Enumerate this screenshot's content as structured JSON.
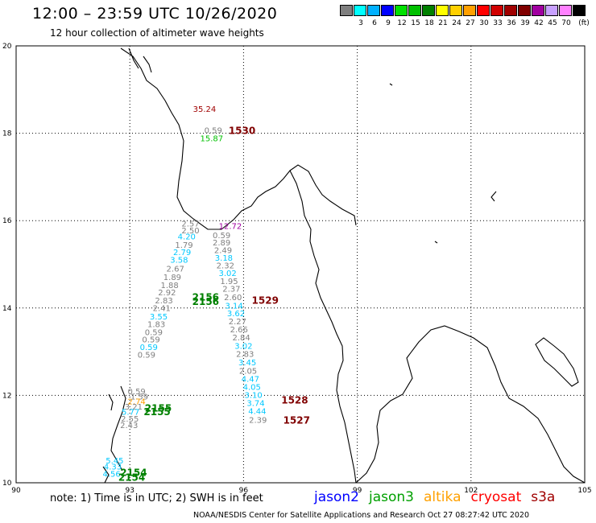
{
  "header": {
    "title": "12:00 – 23:59 UTC 10/26/2020",
    "subtitle": "12 hour collection of altimeter wave heights"
  },
  "scale": {
    "colors": [
      "#7f7f7f",
      "#00ffff",
      "#00b0ff",
      "#0000ff",
      "#00e000",
      "#00c000",
      "#008000",
      "#ffff00",
      "#ffd000",
      "#ffa000",
      "#ff0000",
      "#d00000",
      "#a00000",
      "#800000",
      "#a000a0",
      "#c8a0ff",
      "#ff80ff",
      "#000000"
    ],
    "labels": [
      "3",
      "6",
      "9",
      "12",
      "15",
      "18",
      "21",
      "24",
      "27",
      "30",
      "33",
      "36",
      "39",
      "42",
      "45",
      "70"
    ],
    "unit": "(ft)"
  },
  "axes": {
    "y": {
      "ticks": [
        "20",
        "18",
        "16",
        "14",
        "12",
        "10"
      ],
      "values": [
        20,
        18,
        16,
        14,
        12,
        10
      ],
      "range": [
        10,
        20
      ]
    },
    "x": {
      "ticks": [
        "90",
        "93",
        "96",
        "99",
        "102",
        "105"
      ],
      "values": [
        90,
        93,
        96,
        99,
        102,
        105
      ],
      "range": [
        90,
        105
      ]
    }
  },
  "wave_labels": [
    {
      "text": "35.24",
      "lon": 94.97,
      "lat": 18.49,
      "color": "#a00000"
    },
    {
      "text": "0.59",
      "lon": 95.2,
      "lat": 18.0,
      "color": "#7f7f7f"
    },
    {
      "text": "1530",
      "lon": 95.96,
      "lat": 17.98,
      "color": "#800000",
      "bold": true
    },
    {
      "text": "15.87",
      "lon": 95.16,
      "lat": 17.82,
      "color": "#00c000"
    },
    {
      "text": "12.72",
      "lon": 95.65,
      "lat": 15.81,
      "color": "#a000a0"
    },
    {
      "text": "2.57",
      "lon": 94.6,
      "lat": 15.87,
      "color": "#7f7f7f"
    },
    {
      "text": "2.50",
      "lon": 94.6,
      "lat": 15.71,
      "color": "#7f7f7f"
    },
    {
      "text": "4.20",
      "lon": 94.5,
      "lat": 15.57,
      "color": "#00c8ff"
    },
    {
      "text": "1.79",
      "lon": 94.43,
      "lat": 15.38,
      "color": "#7f7f7f"
    },
    {
      "text": "2.79",
      "lon": 94.38,
      "lat": 15.21,
      "color": "#00c8ff"
    },
    {
      "text": "3.58",
      "lon": 94.3,
      "lat": 15.04,
      "color": "#00c8ff"
    },
    {
      "text": "2.67",
      "lon": 94.2,
      "lat": 14.83,
      "color": "#7f7f7f"
    },
    {
      "text": "1.89",
      "lon": 94.12,
      "lat": 14.64,
      "color": "#7f7f7f"
    },
    {
      "text": "1.88",
      "lon": 94.05,
      "lat": 14.46,
      "color": "#7f7f7f"
    },
    {
      "text": "2.92",
      "lon": 93.98,
      "lat": 14.29,
      "color": "#7f7f7f"
    },
    {
      "text": "2.83",
      "lon": 93.9,
      "lat": 14.11,
      "color": "#7f7f7f"
    },
    {
      "text": "2.41",
      "lon": 93.84,
      "lat": 13.93,
      "color": "#7f7f7f"
    },
    {
      "text": "3.55",
      "lon": 93.76,
      "lat": 13.74,
      "color": "#00c8ff"
    },
    {
      "text": "1.83",
      "lon": 93.7,
      "lat": 13.56,
      "color": "#7f7f7f"
    },
    {
      "text": "0.59",
      "lon": 93.63,
      "lat": 13.38,
      "color": "#7f7f7f"
    },
    {
      "text": "0.59",
      "lon": 93.56,
      "lat": 13.21,
      "color": "#7f7f7f"
    },
    {
      "text": "0.59",
      "lon": 93.5,
      "lat": 13.04,
      "color": "#00c8ff"
    },
    {
      "text": "0.59",
      "lon": 93.44,
      "lat": 12.86,
      "color": "#7f7f7f"
    },
    {
      "text": "2156",
      "lon": 95.0,
      "lat": 14.17,
      "color": "#008000",
      "bold": true
    },
    {
      "text": "2156",
      "lon": 95.0,
      "lat": 14.07,
      "color": "#008000",
      "bold": true
    },
    {
      "text": "0.59",
      "lon": 95.42,
      "lat": 15.6,
      "color": "#7f7f7f"
    },
    {
      "text": "2.89",
      "lon": 95.42,
      "lat": 15.43,
      "color": "#7f7f7f"
    },
    {
      "text": "2.49",
      "lon": 95.46,
      "lat": 15.26,
      "color": "#7f7f7f"
    },
    {
      "text": "3.18",
      "lon": 95.48,
      "lat": 15.08,
      "color": "#00c8ff"
    },
    {
      "text": "2.32",
      "lon": 95.52,
      "lat": 14.91,
      "color": "#7f7f7f"
    },
    {
      "text": "3.02",
      "lon": 95.58,
      "lat": 14.73,
      "color": "#00c8ff"
    },
    {
      "text": "1529",
      "lon": 96.57,
      "lat": 14.1,
      "color": "#800000",
      "bold": true
    },
    {
      "text": "1.95",
      "lon": 95.62,
      "lat": 14.55,
      "color": "#7f7f7f"
    },
    {
      "text": "2.37",
      "lon": 95.68,
      "lat": 14.37,
      "color": "#7f7f7f"
    },
    {
      "text": "2.60",
      "lon": 95.72,
      "lat": 14.18,
      "color": "#7f7f7f"
    },
    {
      "text": "3.14",
      "lon": 95.75,
      "lat": 13.99,
      "color": "#00c8ff"
    },
    {
      "text": "3.62",
      "lon": 95.8,
      "lat": 13.81,
      "color": "#00c8ff"
    },
    {
      "text": "2.27",
      "lon": 95.84,
      "lat": 13.63,
      "color": "#7f7f7f"
    },
    {
      "text": "2.66",
      "lon": 95.88,
      "lat": 13.44,
      "color": "#7f7f7f"
    },
    {
      "text": "2.84",
      "lon": 95.94,
      "lat": 13.26,
      "color": "#7f7f7f"
    },
    {
      "text": "3.02",
      "lon": 96.0,
      "lat": 13.07,
      "color": "#00c8ff"
    },
    {
      "text": "2.83",
      "lon": 96.04,
      "lat": 12.88,
      "color": "#7f7f7f"
    },
    {
      "text": "3.45",
      "lon": 96.1,
      "lat": 12.69,
      "color": "#00c8ff"
    },
    {
      "text": "2.05",
      "lon": 96.12,
      "lat": 12.5,
      "color": "#7f7f7f"
    },
    {
      "text": "4.47",
      "lon": 96.18,
      "lat": 12.31,
      "color": "#00c8ff"
    },
    {
      "text": "4.05",
      "lon": 96.22,
      "lat": 12.13,
      "color": "#00c8ff"
    },
    {
      "text": "3.10",
      "lon": 96.26,
      "lat": 11.94,
      "color": "#00c8ff"
    },
    {
      "text": "1528",
      "lon": 97.35,
      "lat": 11.81,
      "color": "#800000",
      "bold": true
    },
    {
      "text": "3.74",
      "lon": 96.32,
      "lat": 11.76,
      "color": "#00c8ff"
    },
    {
      "text": "4.44",
      "lon": 96.36,
      "lat": 11.57,
      "color": "#00c8ff"
    },
    {
      "text": "2.39",
      "lon": 96.38,
      "lat": 11.37,
      "color": "#7f7f7f"
    },
    {
      "text": "1527",
      "lon": 97.4,
      "lat": 11.35,
      "color": "#800000",
      "bold": true
    },
    {
      "text": "0.59",
      "lon": 93.18,
      "lat": 12.03,
      "color": "#7f7f7f"
    },
    {
      "text": "1.59",
      "lon": 93.25,
      "lat": 11.91,
      "color": "#7f7f7f"
    },
    {
      "text": "2.74",
      "lon": 93.18,
      "lat": 11.8,
      "color": "#ffa000"
    },
    {
      "text": "3.21",
      "lon": 93.1,
      "lat": 11.68,
      "color": "#7f7f7f"
    },
    {
      "text": "5.77",
      "lon": 93.02,
      "lat": 11.56,
      "color": "#00c8ff"
    },
    {
      "text": "2155",
      "lon": 93.75,
      "lat": 11.63,
      "color": "#008000",
      "bold": true
    },
    {
      "text": "2155",
      "lon": 93.72,
      "lat": 11.55,
      "color": "#008000",
      "bold": true
    },
    {
      "text": "2.55",
      "lon": 93.0,
      "lat": 11.4,
      "color": "#7f7f7f"
    },
    {
      "text": "2.43",
      "lon": 92.98,
      "lat": 11.25,
      "color": "#7f7f7f"
    },
    {
      "text": "5.45",
      "lon": 92.6,
      "lat": 10.44,
      "color": "#00c8ff"
    },
    {
      "text": "4.33",
      "lon": 92.55,
      "lat": 10.3,
      "color": "#00c8ff"
    },
    {
      "text": "4.56",
      "lon": 92.52,
      "lat": 10.14,
      "color": "#00c8ff"
    },
    {
      "text": "2154",
      "lon": 93.1,
      "lat": 10.16,
      "color": "#008000",
      "bold": true
    },
    {
      "text": "2154",
      "lon": 93.05,
      "lat": 10.05,
      "color": "#008000",
      "bold": true
    }
  ],
  "note": "note:  1) Time is in UTC;  2) SWH is in feet",
  "legend": [
    {
      "label": "jason2",
      "color": "#0000ff"
    },
    {
      "label": "jason3",
      "color": "#00a000"
    },
    {
      "label": "altika",
      "color": "#ffa000"
    },
    {
      "label": "cryosat",
      "color": "#ff0000"
    },
    {
      "label": "s3a",
      "color": "#a00000"
    }
  ],
  "footer": "NOAA/NESDIS Center for Satellite Applications and Research    Oct 27 08:27:42 UTC 2020"
}
